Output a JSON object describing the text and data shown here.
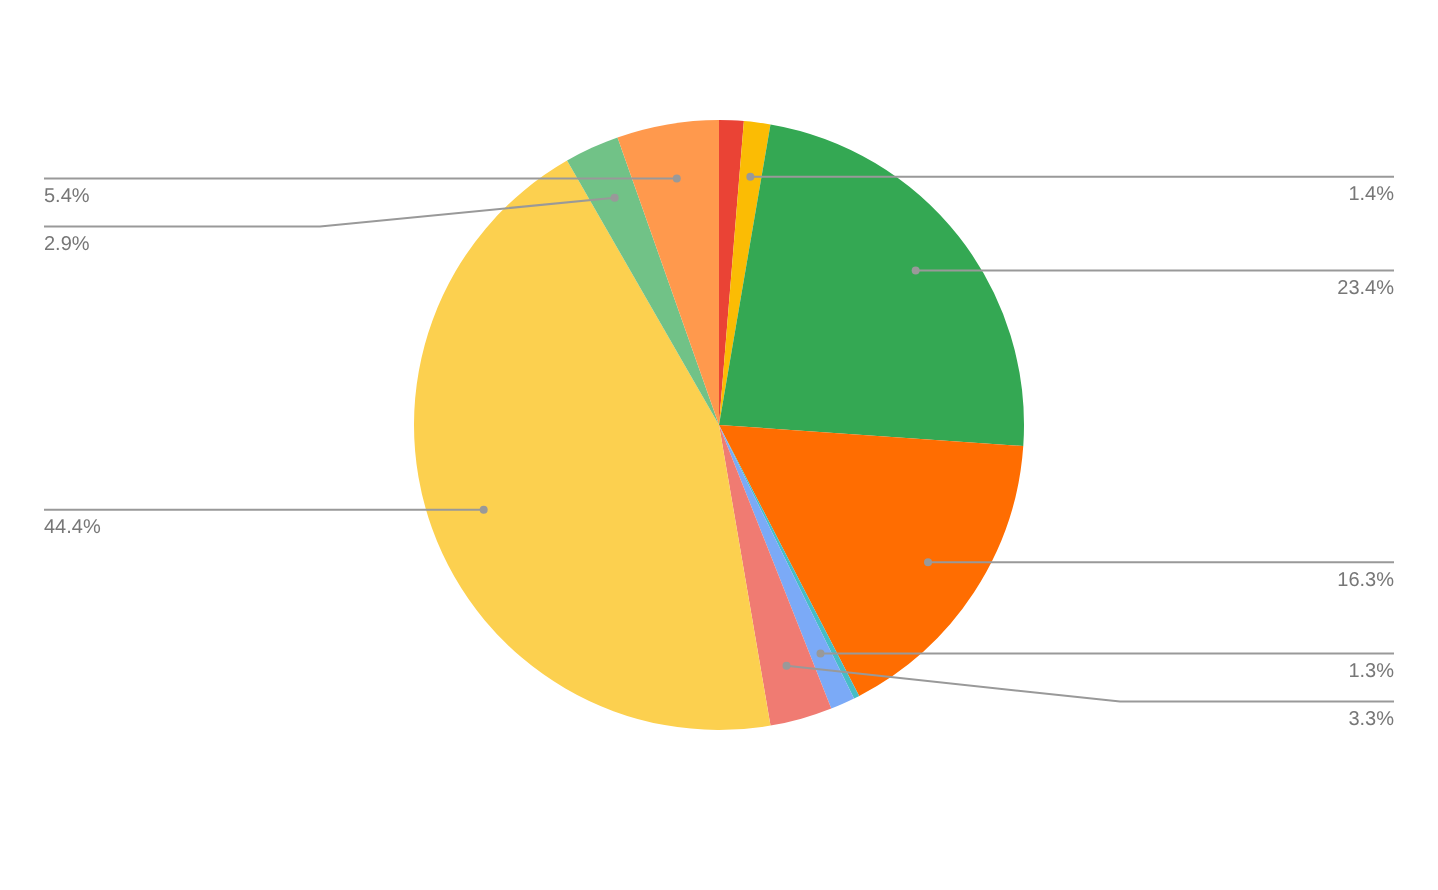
{
  "chart_data": {
    "type": "pie",
    "categories": [
      null,
      null,
      null,
      null,
      null,
      null,
      null,
      null,
      null,
      null
    ],
    "values": [
      1.3,
      1.4,
      23.4,
      16.3,
      0.3,
      1.3,
      3.3,
      44.4,
      2.9,
      5.4
    ],
    "colors": [
      "#ea4335",
      "#fbbc04",
      "#34a853",
      "#ff6d01",
      "#46bdc6",
      "#7baaf7",
      "#f07b72",
      "#fcd04f",
      "#71c287",
      "#ff994d"
    ],
    "value_labels": [
      null,
      "1.4%",
      "23.4%",
      "16.3%",
      null,
      "1.3%",
      "3.3%",
      "44.4%",
      "2.9%",
      "5.4%"
    ],
    "legend": false
  }
}
